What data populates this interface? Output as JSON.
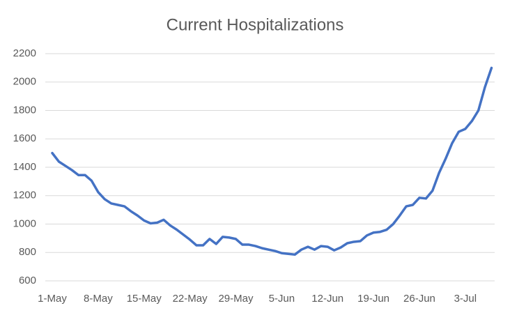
{
  "chart_data": {
    "type": "line",
    "title": "Current Hospitalizations",
    "categories": [
      "1-May",
      null,
      null,
      null,
      null,
      null,
      null,
      "8-May",
      null,
      null,
      null,
      null,
      null,
      null,
      "15-May",
      null,
      null,
      null,
      null,
      null,
      null,
      "22-May",
      null,
      null,
      null,
      null,
      null,
      null,
      "29-May",
      null,
      null,
      null,
      null,
      null,
      null,
      "5-Jun",
      null,
      null,
      null,
      null,
      null,
      null,
      "12-Jun",
      null,
      null,
      null,
      null,
      null,
      null,
      "19-Jun",
      null,
      null,
      null,
      null,
      null,
      null,
      "26-Jun",
      null,
      null,
      null,
      null,
      null,
      null,
      "3-Jul",
      null,
      null,
      null,
      null
    ],
    "series": [
      {
        "name": "Current Hospitalizations",
        "color": "#4472c4",
        "values": [
          1500,
          1440,
          1410,
          1380,
          1345,
          1345,
          1305,
          1225,
          1175,
          1145,
          1135,
          1125,
          1090,
          1060,
          1025,
          1005,
          1010,
          1030,
          990,
          960,
          925,
          890,
          850,
          850,
          895,
          860,
          910,
          905,
          895,
          855,
          855,
          845,
          830,
          820,
          810,
          795,
          790,
          785,
          820,
          840,
          820,
          845,
          840,
          815,
          835,
          865,
          875,
          880,
          920,
          940,
          945,
          960,
          1000,
          1060,
          1125,
          1135,
          1185,
          1180,
          1235,
          1360,
          1460,
          1570,
          1650,
          1670,
          1725,
          1800,
          1965,
          2100
        ]
      }
    ],
    "ylim": [
      600,
      2200
    ],
    "yticks": [
      600,
      800,
      1000,
      1200,
      1400,
      1600,
      1800,
      2000,
      2200
    ],
    "grid": true
  }
}
